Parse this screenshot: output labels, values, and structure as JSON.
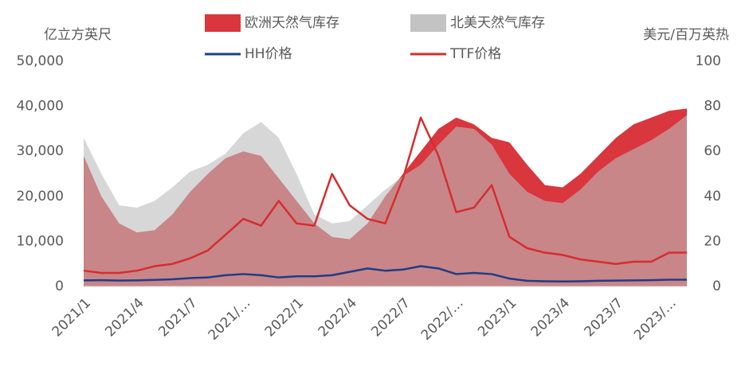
{
  "chart_data": {
    "type": "combo",
    "y_label": "亿立方英尺",
    "y2_label": "美元/百万英热",
    "categories": [
      "2021/1",
      null,
      null,
      "2021/4",
      null,
      null,
      "2021/7",
      null,
      null,
      "2021/…",
      null,
      null,
      "2022/1",
      null,
      null,
      "2022/4",
      null,
      null,
      "2022/7",
      null,
      null,
      "2022/…",
      null,
      null,
      "2023/1",
      null,
      null,
      "2023/4",
      null,
      null,
      "2023/7",
      null,
      null,
      "2023/…",
      null
    ],
    "ylim": [
      0,
      50000
    ],
    "yticks": [
      0,
      {
        "value": 10000,
        "label": "10,000"
      },
      {
        "value": 20000,
        "label": "20,000"
      },
      {
        "value": 30000,
        "label": "30,000"
      },
      {
        "value": 40000,
        "label": "40,000"
      },
      {
        "value": 50000,
        "label": "50,000"
      }
    ],
    "y2lim": [
      0,
      100
    ],
    "y2ticks": [
      0,
      20,
      40,
      60,
      80,
      100
    ],
    "series": [
      {
        "name": "欧洲天然气库存",
        "type": "area",
        "color": "#d9363e",
        "values": [
          29000,
          20000,
          14000,
          12000,
          12500,
          16000,
          21000,
          25000,
          28500,
          30000,
          29000,
          24000,
          19000,
          14000,
          11000,
          10500,
          14000,
          20000,
          25000,
          30000,
          35000,
          37500,
          36000,
          33000,
          32000,
          27000,
          22500,
          22000,
          25000,
          29000,
          33000,
          36000,
          37500,
          39000,
          39500
        ]
      },
      {
        "name": "北美天然气库存",
        "type": "area",
        "color": "#bdbdbd",
        "values": [
          33000,
          25000,
          18000,
          17500,
          19000,
          22000,
          25500,
          27000,
          29500,
          34000,
          36500,
          33000,
          25000,
          16000,
          14000,
          14500,
          18000,
          21500,
          24500,
          27000,
          31500,
          35500,
          35000,
          31500,
          25000,
          21000,
          19000,
          18500,
          21500,
          25500,
          28500,
          30500,
          32500,
          35000,
          38000
        ]
      },
      {
        "name": "HH价格",
        "type": "line",
        "axis": "y2",
        "color": "#1f3c88",
        "values": [
          2.7,
          2.8,
          2.6,
          2.7,
          2.9,
          3.2,
          3.7,
          4.0,
          5.0,
          5.5,
          5.0,
          4.0,
          4.5,
          4.5,
          5.0,
          6.5,
          8.0,
          7.0,
          7.5,
          9.0,
          8.0,
          5.5,
          6.0,
          5.5,
          3.5,
          2.5,
          2.3,
          2.2,
          2.3,
          2.5,
          2.6,
          2.7,
          2.8,
          3.0,
          3.0
        ]
      },
      {
        "name": "TTF价格",
        "type": "line",
        "axis": "y2",
        "color": "#d62d2d",
        "values": [
          7,
          6,
          6,
          7,
          9,
          10,
          12.5,
          16,
          23,
          30,
          27,
          38,
          28,
          27,
          50,
          36,
          30,
          28,
          48,
          75,
          58,
          33,
          35,
          45,
          22,
          17,
          15,
          14,
          12,
          11,
          10,
          11,
          11,
          15,
          15
        ]
      }
    ]
  }
}
